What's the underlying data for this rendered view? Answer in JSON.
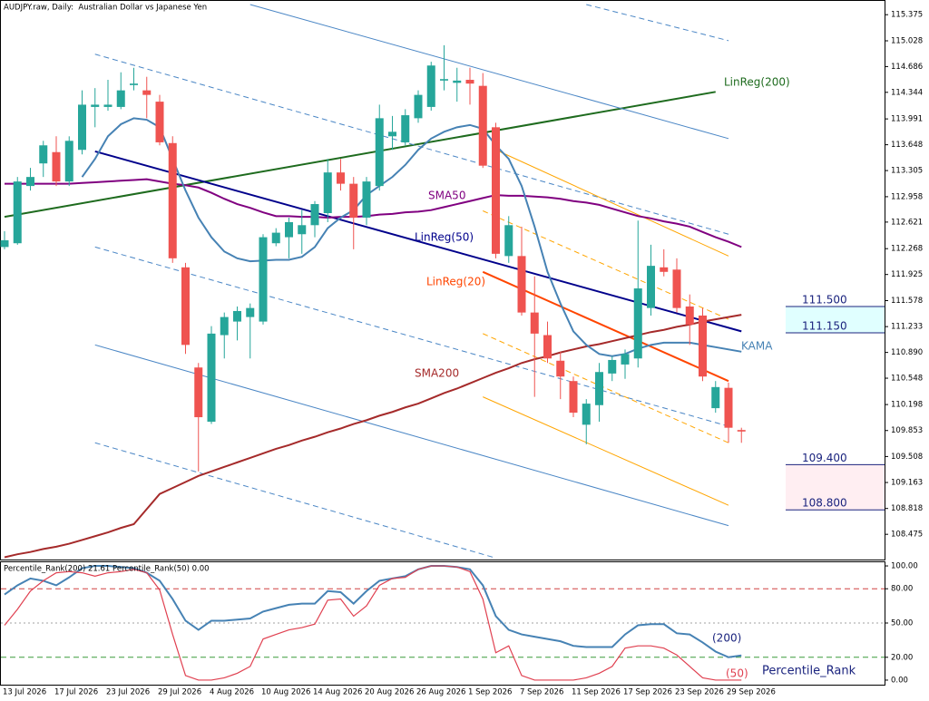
{
  "chart_data": [
    {
      "type": "candlestick",
      "title": "AUDJPY.raw, Daily:  Australian Dollar vs Japanese Yen",
      "up_color": "#26a69a",
      "down_color": "#ef5350",
      "open": [
        112.29,
        112.34,
        113.1,
        113.4,
        113.55,
        113.16,
        113.58,
        114.15,
        114.15,
        114.15,
        114.44,
        114.37,
        114.22,
        113.67,
        112.02,
        110.69,
        109.97,
        111.12,
        111.3,
        111.36,
        111.3,
        112.34,
        112.42,
        112.46,
        112.58,
        112.74,
        113.28,
        113.13,
        112.68,
        113.1,
        113.76,
        113.68,
        114.0,
        114.15,
        114.5,
        114.47,
        114.51,
        114.43,
        113.88,
        112.17,
        112.17,
        111.42,
        111.12,
        110.78,
        110.51,
        109.93,
        110.19,
        110.61,
        110.73,
        110.81,
        111.48,
        112.02,
        111.99,
        111.5,
        111.38,
        110.15,
        110.42,
        109.86
      ],
      "high": [
        112.5,
        113.22,
        113.34,
        113.7,
        113.76,
        113.76,
        114.37,
        114.4,
        114.51,
        114.61,
        114.67,
        114.55,
        114.31,
        113.76,
        112.08,
        110.75,
        111.24,
        111.42,
        111.5,
        111.54,
        112.46,
        112.54,
        112.68,
        112.78,
        112.9,
        113.46,
        113.46,
        113.22,
        113.22,
        114.18,
        114.03,
        114.12,
        114.37,
        114.75,
        114.97,
        114.67,
        114.67,
        114.6,
        113.94,
        112.7,
        112.56,
        111.9,
        111.3,
        110.9,
        110.57,
        110.27,
        110.75,
        110.84,
        110.93,
        112.64,
        112.32,
        112.26,
        112.14,
        111.66,
        111.48,
        110.51,
        110.49,
        109.89
      ],
      "low": [
        112.26,
        112.32,
        113.04,
        113.22,
        113.1,
        113.1,
        113.52,
        113.88,
        114.1,
        114.12,
        114.37,
        114.0,
        113.64,
        112.08,
        110.87,
        109.31,
        109.94,
        110.81,
        111.05,
        110.81,
        111.26,
        112.3,
        112.14,
        112.2,
        112.42,
        112.62,
        113.04,
        112.26,
        112.58,
        113.04,
        113.58,
        113.64,
        113.94,
        114.1,
        114.37,
        114.22,
        114.18,
        113.34,
        112.14,
        112.08,
        111.38,
        110.3,
        110.75,
        110.27,
        110.03,
        109.67,
        109.97,
        110.51,
        110.54,
        110.69,
        111.38,
        111.9,
        111.42,
        110.99,
        110.51,
        110.09,
        109.69,
        109.69
      ],
      "close": [
        112.38,
        113.16,
        113.22,
        113.64,
        113.16,
        113.7,
        114.18,
        114.18,
        114.18,
        114.37,
        114.46,
        114.31,
        113.68,
        112.14,
        110.99,
        110.03,
        111.14,
        111.36,
        111.44,
        111.48,
        112.42,
        112.48,
        112.62,
        112.58,
        112.86,
        113.28,
        113.13,
        112.68,
        113.16,
        114.0,
        113.82,
        114.04,
        114.31,
        114.7,
        114.52,
        114.5,
        114.46,
        113.37,
        112.2,
        112.58,
        111.42,
        111.14,
        110.81,
        110.57,
        110.09,
        110.21,
        110.63,
        110.79,
        110.87,
        111.74,
        112.04,
        111.96,
        111.48,
        111.26,
        110.57,
        110.43,
        109.89,
        109.84
      ],
      "ylim": [
        108.14,
        115.57
      ],
      "yticks": [
        115.375,
        115.028,
        114.686,
        114.344,
        113.991,
        113.648,
        113.305,
        112.958,
        112.621,
        112.268,
        111.925,
        111.578,
        111.233,
        {
          "value": 110.89,
          "label": "110.890"
        },
        110.548,
        110.198,
        109.853,
        109.508,
        109.163,
        108.818,
        108.475
      ],
      "series": [
        {
          "name": "SMA200",
          "color": "#a52a2a",
          "values": [
            108.17,
            108.21,
            108.24,
            108.28,
            108.31,
            108.35,
            108.4,
            108.45,
            108.5,
            108.56,
            108.61,
            108.81,
            109.01,
            109.09,
            109.17,
            109.25,
            109.31,
            109.37,
            109.43,
            109.49,
            109.55,
            109.61,
            109.66,
            109.72,
            109.77,
            109.83,
            109.88,
            109.94,
            109.99,
            110.05,
            110.1,
            110.16,
            110.21,
            110.28,
            110.35,
            110.41,
            110.48,
            110.55,
            110.62,
            110.68,
            110.75,
            110.8,
            110.84,
            110.89,
            110.93,
            110.97,
            111.0,
            111.04,
            111.08,
            111.12,
            111.16,
            111.19,
            111.23,
            111.26,
            111.3,
            111.33,
            111.36,
            111.39
          ]
        },
        {
          "name": "SMA50",
          "color": "#800080",
          "values": [
            113.13,
            113.13,
            113.13,
            113.13,
            113.13,
            113.13,
            113.14,
            113.15,
            113.16,
            113.17,
            113.18,
            113.19,
            113.16,
            113.13,
            113.11,
            113.08,
            113.01,
            112.93,
            112.86,
            112.81,
            112.75,
            112.7,
            112.7,
            112.69,
            112.69,
            112.68,
            112.69,
            112.69,
            112.7,
            112.72,
            112.73,
            112.75,
            112.76,
            112.78,
            112.82,
            112.86,
            112.9,
            112.94,
            112.98,
            112.97,
            112.97,
            112.96,
            112.95,
            112.93,
            112.9,
            112.88,
            112.85,
            112.8,
            112.75,
            112.7,
            112.67,
            112.63,
            112.6,
            112.56,
            112.49,
            112.42,
            112.36,
            112.29
          ]
        },
        {
          "name": "KAMA",
          "color": "#4682b4",
          "values": [
            null,
            null,
            null,
            null,
            null,
            null,
            113.22,
            113.46,
            113.76,
            113.92,
            114.0,
            113.98,
            113.88,
            113.46,
            113.04,
            112.68,
            112.42,
            112.23,
            112.14,
            112.1,
            112.11,
            112.12,
            112.12,
            112.16,
            112.29,
            112.54,
            112.68,
            112.78,
            112.98,
            113.1,
            113.22,
            113.38,
            113.58,
            113.73,
            113.82,
            113.88,
            113.91,
            113.86,
            113.64,
            113.46,
            113.1,
            112.56,
            111.96,
            111.54,
            111.17,
            110.99,
            110.87,
            110.84,
            110.87,
            110.94,
            110.99,
            111.02,
            111.02,
            111.02,
            110.99,
            110.96,
            110.93,
            110.9
          ]
        }
      ],
      "trend_lines": [
        {
          "name": "LinReg(200)",
          "color": "#1e6b1e",
          "dash": "solid",
          "width": 2,
          "x": [
            0,
            55
          ],
          "values": [
            112.69,
            114.35
          ]
        },
        {
          "name": "LinReg(50)",
          "color": "#00008b",
          "dash": "solid",
          "width": 2,
          "x": [
            7,
            57
          ],
          "values": [
            113.56,
            111.17
          ]
        },
        {
          "name": "LinReg(20)",
          "color": "#ff4500",
          "dash": "solid",
          "width": 2,
          "x": [
            37,
            56
          ],
          "values": [
            111.96,
            110.51
          ]
        },
        {
          "color": "#4a86c5",
          "dash": "solid",
          "width": 1,
          "x": [
            19,
            56
          ],
          "values": [
            115.51,
            113.73
          ]
        },
        {
          "color": "#4a86c5",
          "dash": "dashed",
          "width": 1,
          "x": [
            45,
            56
          ],
          "values": [
            115.51,
            115.03
          ]
        },
        {
          "color": "#4a86c5",
          "dash": "dashed",
          "width": 1,
          "x": [
            7,
            56
          ],
          "values": [
            114.85,
            112.46
          ]
        },
        {
          "color": "#4a86c5",
          "dash": "dashed",
          "width": 1,
          "x": [
            7,
            56
          ],
          "values": [
            112.29,
            109.91
          ]
        },
        {
          "color": "#4a86c5",
          "dash": "solid",
          "width": 1,
          "x": [
            7,
            56
          ],
          "values": [
            110.99,
            108.59
          ]
        },
        {
          "color": "#4a86c5",
          "dash": "dashed",
          "width": 1,
          "x": [
            7,
            38
          ],
          "values": [
            109.69,
            108.16
          ]
        },
        {
          "color": "#ffa500",
          "dash": "solid",
          "width": 1,
          "x": [
            38,
            56
          ],
          "values": [
            113.58,
            112.17
          ]
        },
        {
          "color": "#ffa500",
          "dash": "dashed",
          "width": 1,
          "x": [
            37,
            56
          ],
          "values": [
            112.77,
            111.33
          ]
        },
        {
          "color": "#ffa500",
          "dash": "dashed",
          "width": 1,
          "x": [
            37,
            56
          ],
          "values": [
            111.14,
            109.69
          ]
        },
        {
          "color": "#ffa500",
          "dash": "solid",
          "width": 1,
          "x": [
            37,
            56
          ],
          "values": [
            110.3,
            108.86
          ]
        }
      ],
      "zones": [
        {
          "color": "#e0ffff",
          "levels": [
            {
              "value": 111.5,
              "label": "111.500"
            },
            {
              "value": 111.15,
              "label": "111.150"
            }
          ]
        },
        {
          "color": "#ffeef2",
          "levels": [
            {
              "value": 109.4,
              "label": "109.400"
            },
            {
              "value": 108.8,
              "label": "108.800"
            }
          ]
        }
      ]
    },
    {
      "type": "line",
      "title": "Percentile_Rank(200) 21.61 Percentile_Rank(50) 0.00",
      "annotation": "Percentile_Rank",
      "categories": [
        "13 Jul 2026",
        null,
        null,
        null,
        "17 Jul 2026",
        null,
        null,
        null,
        "23 Jul 2026",
        null,
        null,
        null,
        "29 Jul 2026",
        null,
        null,
        null,
        "4 Aug 2026",
        null,
        null,
        null,
        "10 Aug 2026",
        null,
        null,
        null,
        "14 Aug 2026",
        null,
        null,
        null,
        "20 Aug 2026",
        null,
        null,
        null,
        "26 Aug 2026",
        null,
        null,
        null,
        "1 Sep 2026",
        null,
        null,
        null,
        "7 Sep 2026",
        null,
        null,
        null,
        "11 Sep 2026",
        null,
        null,
        null,
        "17 Sep 2026",
        null,
        null,
        null,
        "23 Sep 2026",
        null,
        null,
        null,
        "29 Sep 2026",
        null
      ],
      "ylim": [
        -4,
        104
      ],
      "yticks": [
        {
          "value": 100,
          "label": "100.00"
        },
        {
          "value": 80,
          "label": "80.00"
        },
        {
          "value": 50,
          "label": "50.00"
        },
        {
          "value": 20,
          "label": "20.00"
        },
        {
          "value": 0,
          "label": "0.00"
        }
      ],
      "hlines": [
        {
          "value": 80,
          "color": "#d04040",
          "dash": "dashed"
        },
        {
          "value": 50,
          "color": "#a0a0a0",
          "dash": "dotted"
        },
        {
          "value": 20,
          "color": "#3a9a3a",
          "dash": "dashed"
        }
      ],
      "series": [
        {
          "name": "(200)",
          "color": "#4682b4",
          "values": [
            75,
            83,
            89,
            87,
            83,
            90,
            98,
            100,
            100,
            99,
            98,
            94,
            87,
            71,
            52,
            44,
            52,
            52,
            53,
            54,
            60,
            63,
            66,
            67,
            67,
            78,
            77,
            67,
            78,
            87,
            89,
            91,
            97,
            100,
            100,
            99,
            97,
            83,
            56,
            44,
            40,
            38,
            36,
            34,
            30,
            29,
            29,
            29,
            40,
            48,
            49,
            49,
            41,
            40,
            33,
            25,
            20,
            21.61
          ]
        },
        {
          "name": "(50)",
          "color": "#e04050",
          "values": [
            48,
            62,
            78,
            87,
            94,
            95,
            94,
            91,
            94,
            95,
            97,
            94,
            79,
            40,
            4,
            0,
            0,
            2,
            6,
            12,
            36,
            40,
            44,
            46,
            49,
            70,
            71,
            56,
            65,
            83,
            89,
            90,
            97,
            100,
            100,
            99,
            95,
            71,
            24,
            30,
            4,
            0,
            0,
            0,
            0,
            2,
            6,
            12,
            28,
            30,
            30,
            28,
            22,
            12,
            2,
            0,
            0,
            0
          ]
        }
      ]
    }
  ]
}
